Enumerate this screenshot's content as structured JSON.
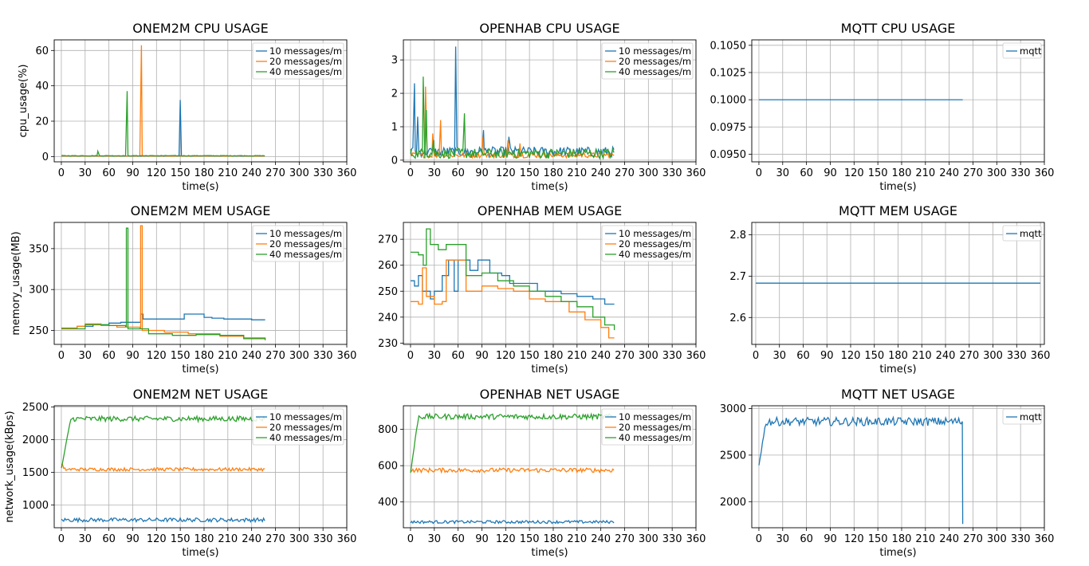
{
  "colors": {
    "blue": "#1f77b4",
    "orange": "#ff7f0e",
    "green": "#2ca02c",
    "grid": "#b0b0b0"
  },
  "chart_data": [
    {
      "type": "line",
      "title": "ONEM2M CPU USAGE",
      "xlabel": "time(s)",
      "ylabel": "cpu_usage(%)",
      "xlim": [
        -9,
        360
      ],
      "ylim": [
        -3,
        66
      ],
      "xticks": [
        "0",
        "30",
        "60",
        "90",
        "120",
        "150",
        "180",
        "210",
        "240",
        "270",
        "300",
        "330",
        "360"
      ],
      "yticks": [
        {
          "v": 0,
          "label": "0"
        },
        {
          "v": 20,
          "label": "20"
        },
        {
          "v": 40,
          "label": "40"
        },
        {
          "v": 60,
          "label": "60"
        }
      ],
      "grid": true,
      "legend": "upper right",
      "series": [
        {
          "name": "10 messages/m",
          "color": "#1f77b4",
          "pattern": "flat",
          "base": 0.2,
          "noise": 0.2,
          "xmax": 257,
          "spikes": [
            [
              150,
              32
            ]
          ]
        },
        {
          "name": "20 messages/m",
          "color": "#ff7f0e",
          "pattern": "flat",
          "base": 0.2,
          "noise": 0.2,
          "xmax": 257,
          "spikes": [
            [
              101,
              63
            ]
          ]
        },
        {
          "name": "40 messages/m",
          "color": "#2ca02c",
          "pattern": "flat",
          "base": 0.3,
          "noise": 0.3,
          "xmax": 257,
          "spikes": [
            [
              46,
              3
            ],
            [
              82,
              36
            ],
            [
              83,
              37
            ]
          ]
        }
      ]
    },
    {
      "type": "line",
      "title": "OPENHAB CPU USAGE",
      "xlabel": "time(s)",
      "ylabel": "",
      "xlim": [
        -9,
        360
      ],
      "ylim": [
        -0.05,
        3.6
      ],
      "xticks": [
        "0",
        "30",
        "60",
        "90",
        "120",
        "150",
        "180",
        "210",
        "240",
        "270",
        "300",
        "330",
        "360"
      ],
      "yticks": [
        {
          "v": 0,
          "label": "0"
        },
        {
          "v": 1,
          "label": "1"
        },
        {
          "v": 2,
          "label": "2"
        },
        {
          "v": 3,
          "label": "3"
        }
      ],
      "grid": true,
      "legend": "upper right",
      "series": [
        {
          "name": "10 messages/m",
          "color": "#1f77b4",
          "pattern": "noisy",
          "base": 0.25,
          "noise": 0.15,
          "xmax": 257,
          "spikes": [
            [
              5,
              2.3
            ],
            [
              9,
              1.3
            ],
            [
              57,
              3.4
            ],
            [
              92,
              0.9
            ],
            [
              124,
              0.7
            ]
          ]
        },
        {
          "name": "20 messages/m",
          "color": "#ff7f0e",
          "pattern": "noisy",
          "base": 0.15,
          "noise": 0.08,
          "xmax": 257,
          "spikes": [
            [
              19,
              2.2
            ],
            [
              28,
              0.8
            ],
            [
              38,
              1.2
            ],
            [
              91,
              0.7
            ],
            [
              123,
              0.6
            ],
            [
              138,
              0.5
            ]
          ]
        },
        {
          "name": "40 messages/m",
          "color": "#2ca02c",
          "pattern": "noisy",
          "base": 0.2,
          "noise": 0.15,
          "xmax": 257,
          "spikes": [
            [
              16,
              2.5
            ],
            [
              20,
              1.5
            ],
            [
              29,
              0.6
            ],
            [
              68,
              1.4
            ],
            [
              130,
              0.3
            ]
          ]
        }
      ]
    },
    {
      "type": "line",
      "title": "MQTT CPU USAGE",
      "xlabel": "time(s)",
      "ylabel": "",
      "xlim": [
        -9,
        360
      ],
      "ylim": [
        0.0943,
        0.1055
      ],
      "xticks": [
        "0",
        "30",
        "60",
        "90",
        "120",
        "150",
        "180",
        "210",
        "240",
        "270",
        "300",
        "330",
        "360"
      ],
      "yticks": [
        {
          "v": 0.095,
          "label": "0.0950"
        },
        {
          "v": 0.0975,
          "label": "0.0975"
        },
        {
          "v": 0.1,
          "label": "0.1000"
        },
        {
          "v": 0.1025,
          "label": "0.1025"
        },
        {
          "v": 0.105,
          "label": "0.1050"
        }
      ],
      "grid": true,
      "legend": "upper right",
      "series": [
        {
          "name": "mqtt",
          "color": "#1f77b4",
          "pattern": "const",
          "base": 0.1,
          "xmax": 257
        }
      ]
    },
    {
      "type": "line",
      "title": "ONEM2M MEM USAGE",
      "xlabel": "time(s)",
      "ylabel": "memory_usage(MB)",
      "xlim": [
        -9,
        360
      ],
      "ylim": [
        233,
        382
      ],
      "xticks": [
        "0",
        "30",
        "60",
        "90",
        "120",
        "150",
        "180",
        "210",
        "240",
        "270",
        "300",
        "330",
        "360"
      ],
      "yticks": [
        {
          "v": 250,
          "label": "250"
        },
        {
          "v": 300,
          "label": "300"
        },
        {
          "v": 350,
          "label": "350"
        }
      ],
      "grid": true,
      "legend": "upper right",
      "series": [
        {
          "name": "10 messages/m",
          "color": "#1f77b4",
          "pattern": "steps",
          "xmax": 257,
          "steps": [
            [
              0,
              253
            ],
            [
              20,
              255
            ],
            [
              40,
              257
            ],
            [
              60,
              259
            ],
            [
              75,
              260
            ],
            [
              100,
              270
            ],
            [
              103,
              264
            ],
            [
              140,
              264
            ],
            [
              155,
              270
            ],
            [
              180,
              266
            ],
            [
              190,
              265
            ],
            [
              205,
              264
            ],
            [
              240,
              263
            ],
            [
              257,
              263
            ]
          ]
        },
        {
          "name": "20 messages/m",
          "color": "#ff7f0e",
          "pattern": "steps",
          "xmax": 257,
          "steps": [
            [
              0,
              253
            ],
            [
              20,
              255
            ],
            [
              30,
              258
            ],
            [
              50,
              256
            ],
            [
              70,
              254
            ],
            [
              99,
              253
            ],
            [
              100,
              378
            ],
            [
              102,
              250
            ],
            [
              130,
              248
            ],
            [
              160,
              246
            ],
            [
              200,
              243
            ],
            [
              230,
              241
            ],
            [
              257,
              240
            ]
          ],
          "spikes": [
            [
              100,
              378
            ]
          ]
        },
        {
          "name": "40 messages/m",
          "color": "#2ca02c",
          "pattern": "steps",
          "xmax": 257,
          "steps": [
            [
              0,
              252
            ],
            [
              30,
              257
            ],
            [
              60,
              256
            ],
            [
              81,
              255
            ],
            [
              82,
              375
            ],
            [
              84,
              252
            ],
            [
              110,
              246
            ],
            [
              140,
              244
            ],
            [
              170,
              245
            ],
            [
              200,
              244
            ],
            [
              230,
              240
            ],
            [
              257,
              238
            ]
          ],
          "spikes": [
            [
              82,
              375
            ]
          ]
        }
      ]
    },
    {
      "type": "line",
      "title": "OPENHAB MEM USAGE",
      "xlabel": "time(s)",
      "ylabel": "",
      "xlim": [
        -9,
        360
      ],
      "ylim": [
        229.5,
        276.5
      ],
      "xticks": [
        "0",
        "30",
        "60",
        "90",
        "120",
        "150",
        "180",
        "210",
        "240",
        "270",
        "300",
        "330",
        "360"
      ],
      "yticks": [
        {
          "v": 230,
          "label": "230"
        },
        {
          "v": 240,
          "label": "240"
        },
        {
          "v": 250,
          "label": "250"
        },
        {
          "v": 260,
          "label": "260"
        },
        {
          "v": 270,
          "label": "270"
        }
      ],
      "grid": true,
      "legend": "upper right",
      "series": [
        {
          "name": "10 messages/m",
          "color": "#1f77b4",
          "pattern": "steps",
          "xmax": 257,
          "steps": [
            [
              0,
              254
            ],
            [
              5,
              252
            ],
            [
              10,
              256
            ],
            [
              15,
              250
            ],
            [
              25,
              247
            ],
            [
              30,
              250
            ],
            [
              40,
              256
            ],
            [
              48,
              262
            ],
            [
              55,
              250
            ],
            [
              60,
              262
            ],
            [
              75,
              258
            ],
            [
              85,
              262
            ],
            [
              100,
              257
            ],
            [
              115,
              256
            ],
            [
              125,
              253
            ],
            [
              140,
              253
            ],
            [
              160,
              250
            ],
            [
              175,
              250
            ],
            [
              190,
              249
            ],
            [
              210,
              248
            ],
            [
              230,
              247
            ],
            [
              245,
              245
            ],
            [
              257,
              245
            ]
          ]
        },
        {
          "name": "20 messages/m",
          "color": "#ff7f0e",
          "pattern": "steps",
          "xmax": 257,
          "steps": [
            [
              0,
              246
            ],
            [
              10,
              245
            ],
            [
              15,
              259
            ],
            [
              20,
              248
            ],
            [
              30,
              245
            ],
            [
              40,
              246
            ],
            [
              45,
              262
            ],
            [
              65,
              262
            ],
            [
              70,
              250
            ],
            [
              90,
              252
            ],
            [
              110,
              251
            ],
            [
              130,
              250
            ],
            [
              150,
              247
            ],
            [
              170,
              246
            ],
            [
              200,
              242
            ],
            [
              220,
              239
            ],
            [
              240,
              236
            ],
            [
              250,
              232
            ],
            [
              257,
              232
            ]
          ]
        },
        {
          "name": "40 messages/m",
          "color": "#2ca02c",
          "pattern": "steps",
          "xmax": 257,
          "steps": [
            [
              0,
              265
            ],
            [
              10,
              264
            ],
            [
              16,
              260
            ],
            [
              20,
              274
            ],
            [
              25,
              268
            ],
            [
              35,
              266
            ],
            [
              45,
              268
            ],
            [
              60,
              268
            ],
            [
              70,
              256
            ],
            [
              90,
              257
            ],
            [
              110,
              254
            ],
            [
              130,
              252
            ],
            [
              150,
              250
            ],
            [
              170,
              248
            ],
            [
              190,
              246
            ],
            [
              210,
              244
            ],
            [
              230,
              240
            ],
            [
              245,
              237
            ],
            [
              257,
              235
            ]
          ]
        }
      ]
    },
    {
      "type": "line",
      "title": "MQTT MEM USAGE",
      "xlabel": "time(s)",
      "ylabel": "",
      "xlim": [
        -5,
        365
      ],
      "ylim": [
        2.535,
        2.83
      ],
      "xticks": [
        "0",
        "30",
        "60",
        "90",
        "120",
        "150",
        "180",
        "210",
        "240",
        "270",
        "300",
        "330",
        "360"
      ],
      "yticks": [
        {
          "v": 2.6,
          "label": "2.6"
        },
        {
          "v": 2.7,
          "label": "2.7"
        },
        {
          "v": 2.8,
          "label": "2.8"
        }
      ],
      "grid": true,
      "legend": "upper right",
      "series": [
        {
          "name": "mqtt",
          "color": "#1f77b4",
          "pattern": "const",
          "base": 2.683,
          "xmax": 360
        }
      ]
    },
    {
      "type": "line",
      "title": "ONEM2M NET USAGE",
      "xlabel": "time(s)",
      "ylabel": "network_usage(kBps)",
      "xlim": [
        -9,
        360
      ],
      "ylim": [
        650,
        2520
      ],
      "xticks": [
        "0",
        "30",
        "60",
        "90",
        "120",
        "150",
        "180",
        "210",
        "240",
        "270",
        "300",
        "330",
        "360"
      ],
      "yticks": [
        {
          "v": 1000,
          "label": "1000"
        },
        {
          "v": 1500,
          "label": "1500"
        },
        {
          "v": 2000,
          "label": "2000"
        },
        {
          "v": 2500,
          "label": "2500"
        }
      ],
      "grid": true,
      "legend": "upper right",
      "series": [
        {
          "name": "10 messages/m",
          "color": "#1f77b4",
          "pattern": "noisy",
          "base": 770,
          "noise": 30,
          "xmax": 257
        },
        {
          "name": "20 messages/m",
          "color": "#ff7f0e",
          "pattern": "noisy",
          "base": 1545,
          "noise": 25,
          "xmax": 257,
          "start": 1620
        },
        {
          "name": "40 messages/m",
          "color": "#2ca02c",
          "pattern": "ramp",
          "base": 2320,
          "noise": 40,
          "xmax": 257,
          "start": 1550,
          "ramp": 12
        }
      ]
    },
    {
      "type": "line",
      "title": "OPENHAB NET USAGE",
      "xlabel": "time(s)",
      "ylabel": "",
      "xlim": [
        -9,
        360
      ],
      "ylim": [
        258,
        930
      ],
      "xticks": [
        "0",
        "30",
        "60",
        "90",
        "120",
        "150",
        "180",
        "210",
        "240",
        "270",
        "300",
        "330",
        "360"
      ],
      "yticks": [
        {
          "v": 400,
          "label": "400"
        },
        {
          "v": 600,
          "label": "600"
        },
        {
          "v": 800,
          "label": "800"
        }
      ],
      "grid": true,
      "legend": "upper right",
      "series": [
        {
          "name": "10 messages/m",
          "color": "#1f77b4",
          "pattern": "noisy",
          "base": 290,
          "noise": 8,
          "xmax": 257
        },
        {
          "name": "20 messages/m",
          "color": "#ff7f0e",
          "pattern": "noisy",
          "base": 575,
          "noise": 12,
          "xmax": 257
        },
        {
          "name": "40 messages/m",
          "color": "#2ca02c",
          "pattern": "ramp",
          "base": 870,
          "noise": 15,
          "xmax": 257,
          "start": 560,
          "ramp": 10
        }
      ]
    },
    {
      "type": "line",
      "title": "MQTT NET USAGE",
      "xlabel": "time(s)",
      "ylabel": "",
      "xlim": [
        -9,
        360
      ],
      "ylim": [
        1720,
        3030
      ],
      "xticks": [
        "0",
        "30",
        "60",
        "90",
        "120",
        "150",
        "180",
        "210",
        "240",
        "270",
        "300",
        "330",
        "360"
      ],
      "yticks": [
        {
          "v": 2000,
          "label": "2000"
        },
        {
          "v": 2500,
          "label": "2500"
        },
        {
          "v": 3000,
          "label": "3000"
        }
      ],
      "grid": true,
      "legend": "upper right",
      "series": [
        {
          "name": "mqtt",
          "color": "#1f77b4",
          "pattern": "ramp",
          "base": 2860,
          "noise": 45,
          "xmax": 257,
          "start": 2400,
          "ramp": 9,
          "tail": 1760
        }
      ]
    }
  ]
}
